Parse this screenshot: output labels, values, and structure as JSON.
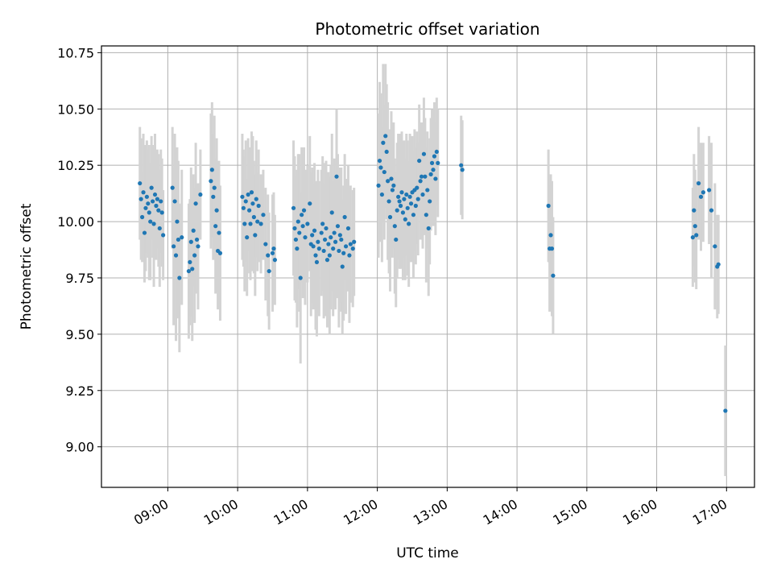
{
  "chart_data": {
    "type": "scatter",
    "title": "Photometric offset variation",
    "xlabel": "UTC time",
    "ylabel": "Photometric offset",
    "x_ticks": [
      "09:00",
      "10:00",
      "11:00",
      "12:00",
      "13:00",
      "14:00",
      "15:00",
      "16:00",
      "17:00"
    ],
    "y_ticks": [
      "9.00",
      "9.25",
      "9.50",
      "9.75",
      "10.00",
      "10.25",
      "10.50",
      "10.75"
    ],
    "xlim": [
      "08:03",
      "17:24"
    ],
    "ylim": [
      8.82,
      10.78
    ],
    "grid": true,
    "colors": {
      "point": "#1f77b4",
      "errorbar": "#d3d3d3",
      "grid": "#b0b0b0"
    },
    "series": [
      {
        "points": [
          {
            "t": "08:36",
            "y": 10.17,
            "err": 0.25
          },
          {
            "t": "08:37",
            "y": 10.1,
            "err": 0.27
          },
          {
            "t": "08:38",
            "y": 10.02,
            "err": 0.2
          },
          {
            "t": "08:39",
            "y": 10.13,
            "err": 0.26
          },
          {
            "t": "08:40",
            "y": 9.95,
            "err": 0.22
          },
          {
            "t": "08:41",
            "y": 10.06,
            "err": 0.28
          },
          {
            "t": "08:42",
            "y": 10.11,
            "err": 0.25
          },
          {
            "t": "08:43",
            "y": 10.08,
            "err": 0.24
          },
          {
            "t": "08:44",
            "y": 10.04,
            "err": 0.3
          },
          {
            "t": "08:45",
            "y": 10.0,
            "err": 0.26
          },
          {
            "t": "08:46",
            "y": 10.15,
            "err": 0.23
          },
          {
            "t": "08:47",
            "y": 10.09,
            "err": 0.25
          },
          {
            "t": "08:48",
            "y": 9.99,
            "err": 0.28
          },
          {
            "t": "08:49",
            "y": 10.12,
            "err": 0.27
          },
          {
            "t": "08:50",
            "y": 10.07,
            "err": 0.24
          },
          {
            "t": "08:51",
            "y": 10.1,
            "err": 0.22
          },
          {
            "t": "08:52",
            "y": 10.05,
            "err": 0.25
          },
          {
            "t": "08:53",
            "y": 9.97,
            "err": 0.26
          },
          {
            "t": "08:54",
            "y": 10.09,
            "err": 0.23
          },
          {
            "t": "08:55",
            "y": 10.04,
            "err": 0.24
          },
          {
            "t": "08:56",
            "y": 9.94,
            "err": 0.2
          },
          {
            "t": "09:04",
            "y": 10.15,
            "err": 0.27
          },
          {
            "t": "09:05",
            "y": 9.89,
            "err": 0.35
          },
          {
            "t": "09:06",
            "y": 10.09,
            "err": 0.3
          },
          {
            "t": "09:07",
            "y": 9.85,
            "err": 0.38
          },
          {
            "t": "09:08",
            "y": 10.0,
            "err": 0.33
          },
          {
            "t": "09:09",
            "y": 9.92,
            "err": 0.35
          },
          {
            "t": "09:10",
            "y": 9.75,
            "err": 0.33
          },
          {
            "t": "09:12",
            "y": 9.93,
            "err": 0.3
          },
          {
            "t": "09:18",
            "y": 9.78,
            "err": 0.3
          },
          {
            "t": "09:19",
            "y": 9.82,
            "err": 0.28
          },
          {
            "t": "09:20",
            "y": 9.91,
            "err": 0.33
          },
          {
            "t": "09:21",
            "y": 9.79,
            "err": 0.32
          },
          {
            "t": "09:22",
            "y": 9.96,
            "err": 0.25
          },
          {
            "t": "09:23",
            "y": 9.85,
            "err": 0.3
          },
          {
            "t": "09:24",
            "y": 10.08,
            "err": 0.27
          },
          {
            "t": "09:25",
            "y": 9.92,
            "err": 0.24
          },
          {
            "t": "09:26",
            "y": 9.89,
            "err": 0.28
          },
          {
            "t": "09:28",
            "y": 10.12,
            "err": 0.2
          },
          {
            "t": "09:37",
            "y": 10.18,
            "err": 0.3
          },
          {
            "t": "09:38",
            "y": 10.23,
            "err": 0.3
          },
          {
            "t": "09:39",
            "y": 10.11,
            "err": 0.28
          },
          {
            "t": "09:40",
            "y": 10.15,
            "err": 0.32
          },
          {
            "t": "09:41",
            "y": 9.98,
            "err": 0.3
          },
          {
            "t": "09:42",
            "y": 10.05,
            "err": 0.32
          },
          {
            "t": "09:43",
            "y": 9.87,
            "err": 0.26
          },
          {
            "t": "09:44",
            "y": 9.95,
            "err": 0.32
          },
          {
            "t": "09:45",
            "y": 9.86,
            "err": 0.3
          },
          {
            "t": "10:04",
            "y": 10.11,
            "err": 0.28
          },
          {
            "t": "10:05",
            "y": 10.06,
            "err": 0.26
          },
          {
            "t": "10:06",
            "y": 9.99,
            "err": 0.3
          },
          {
            "t": "10:07",
            "y": 10.09,
            "err": 0.27
          },
          {
            "t": "10:08",
            "y": 9.93,
            "err": 0.26
          },
          {
            "t": "10:09",
            "y": 10.12,
            "err": 0.25
          },
          {
            "t": "10:10",
            "y": 10.05,
            "err": 0.28
          },
          {
            "t": "10:11",
            "y": 9.99,
            "err": 0.25
          },
          {
            "t": "10:12",
            "y": 10.13,
            "err": 0.27
          },
          {
            "t": "10:13",
            "y": 10.08,
            "err": 0.3
          },
          {
            "t": "10:14",
            "y": 10.02,
            "err": 0.25
          },
          {
            "t": "10:15",
            "y": 9.94,
            "err": 0.27
          },
          {
            "t": "10:16",
            "y": 10.1,
            "err": 0.26
          },
          {
            "t": "10:17",
            "y": 10.0,
            "err": 0.22
          },
          {
            "t": "10:18",
            "y": 10.07,
            "err": 0.25
          },
          {
            "t": "10:20",
            "y": 9.99,
            "err": 0.22
          },
          {
            "t": "10:22",
            "y": 10.03,
            "err": 0.2
          },
          {
            "t": "10:24",
            "y": 9.9,
            "err": 0.25
          },
          {
            "t": "10:26",
            "y": 9.85,
            "err": 0.27
          },
          {
            "t": "10:27",
            "y": 9.78,
            "err": 0.26
          },
          {
            "t": "10:30",
            "y": 9.86,
            "err": 0.26
          },
          {
            "t": "10:31",
            "y": 9.88,
            "err": 0.25
          },
          {
            "t": "10:32",
            "y": 9.83,
            "err": 0.2
          },
          {
            "t": "10:48",
            "y": 10.06,
            "err": 0.3
          },
          {
            "t": "10:49",
            "y": 9.97,
            "err": 0.32
          },
          {
            "t": "10:50",
            "y": 9.92,
            "err": 0.28
          },
          {
            "t": "10:51",
            "y": 9.88,
            "err": 0.35
          },
          {
            "t": "10:52",
            "y": 10.0,
            "err": 0.3
          },
          {
            "t": "10:53",
            "y": 9.95,
            "err": 0.35
          },
          {
            "t": "10:54",
            "y": 9.75,
            "err": 0.38
          },
          {
            "t": "10:55",
            "y": 10.03,
            "err": 0.3
          },
          {
            "t": "10:56",
            "y": 9.98,
            "err": 0.32
          },
          {
            "t": "10:57",
            "y": 10.05,
            "err": 0.28
          },
          {
            "t": "10:58",
            "y": 9.93,
            "err": 0.3
          },
          {
            "t": "11:00",
            "y": 9.99,
            "err": 0.26
          },
          {
            "t": "11:02",
            "y": 10.08,
            "err": 0.3
          },
          {
            "t": "11:03",
            "y": 9.9,
            "err": 0.32
          },
          {
            "t": "11:04",
            "y": 9.94,
            "err": 0.3
          },
          {
            "t": "11:05",
            "y": 9.89,
            "err": 0.28
          },
          {
            "t": "11:06",
            "y": 9.96,
            "err": 0.3
          },
          {
            "t": "11:07",
            "y": 9.85,
            "err": 0.33
          },
          {
            "t": "11:08",
            "y": 9.82,
            "err": 0.33
          },
          {
            "t": "11:09",
            "y": 9.91,
            "err": 0.32
          },
          {
            "t": "11:10",
            "y": 9.88,
            "err": 0.3
          },
          {
            "t": "11:12",
            "y": 9.95,
            "err": 0.28
          },
          {
            "t": "11:13",
            "y": 9.99,
            "err": 0.3
          },
          {
            "t": "11:14",
            "y": 9.87,
            "err": 0.3
          },
          {
            "t": "11:15",
            "y": 9.92,
            "err": 0.34
          },
          {
            "t": "11:16",
            "y": 9.97,
            "err": 0.3
          },
          {
            "t": "11:17",
            "y": 9.83,
            "err": 0.3
          },
          {
            "t": "11:18",
            "y": 9.9,
            "err": 0.32
          },
          {
            "t": "11:19",
            "y": 9.85,
            "err": 0.35
          },
          {
            "t": "11:20",
            "y": 9.93,
            "err": 0.32
          },
          {
            "t": "11:21",
            "y": 10.04,
            "err": 0.35
          },
          {
            "t": "11:22",
            "y": 9.88,
            "err": 0.3
          },
          {
            "t": "11:23",
            "y": 9.95,
            "err": 0.33
          },
          {
            "t": "11:24",
            "y": 9.91,
            "err": 0.3
          },
          {
            "t": "11:25",
            "y": 10.2,
            "err": 0.3
          },
          {
            "t": "11:26",
            "y": 9.98,
            "err": 0.32
          },
          {
            "t": "11:27",
            "y": 9.87,
            "err": 0.34
          },
          {
            "t": "11:28",
            "y": 9.94,
            "err": 0.3
          },
          {
            "t": "11:29",
            "y": 9.92,
            "err": 0.32
          },
          {
            "t": "11:30",
            "y": 9.8,
            "err": 0.3
          },
          {
            "t": "11:31",
            "y": 9.86,
            "err": 0.3
          },
          {
            "t": "11:32",
            "y": 10.02,
            "err": 0.28
          },
          {
            "t": "11:33",
            "y": 9.89,
            "err": 0.3
          },
          {
            "t": "11:35",
            "y": 9.97,
            "err": 0.28
          },
          {
            "t": "11:36",
            "y": 9.85,
            "err": 0.3
          },
          {
            "t": "11:37",
            "y": 9.9,
            "err": 0.26
          },
          {
            "t": "11:39",
            "y": 9.88,
            "err": 0.26
          },
          {
            "t": "11:40",
            "y": 9.91,
            "err": 0.24
          },
          {
            "t": "12:01",
            "y": 10.16,
            "err": 0.32
          },
          {
            "t": "12:02",
            "y": 10.27,
            "err": 0.35
          },
          {
            "t": "12:03",
            "y": 10.24,
            "err": 0.33
          },
          {
            "t": "12:04",
            "y": 10.12,
            "err": 0.3
          },
          {
            "t": "12:05",
            "y": 10.35,
            "err": 0.35
          },
          {
            "t": "12:06",
            "y": 10.22,
            "err": 0.3
          },
          {
            "t": "12:07",
            "y": 10.38,
            "err": 0.32
          },
          {
            "t": "12:08",
            "y": 10.31,
            "err": 0.3
          },
          {
            "t": "12:09",
            "y": 10.18,
            "err": 0.35
          },
          {
            "t": "12:10",
            "y": 10.09,
            "err": 0.32
          },
          {
            "t": "12:11",
            "y": 10.02,
            "err": 0.33
          },
          {
            "t": "12:12",
            "y": 10.19,
            "err": 0.3
          },
          {
            "t": "12:13",
            "y": 10.14,
            "err": 0.3
          },
          {
            "t": "12:14",
            "y": 10.16,
            "err": 0.28
          },
          {
            "t": "12:15",
            "y": 9.98,
            "err": 0.3
          },
          {
            "t": "12:16",
            "y": 9.92,
            "err": 0.3
          },
          {
            "t": "12:17",
            "y": 10.05,
            "err": 0.3
          },
          {
            "t": "12:18",
            "y": 10.11,
            "err": 0.28
          },
          {
            "t": "12:19",
            "y": 10.09,
            "err": 0.3
          },
          {
            "t": "12:20",
            "y": 10.07,
            "err": 0.28
          },
          {
            "t": "12:21",
            "y": 10.13,
            "err": 0.27
          },
          {
            "t": "12:22",
            "y": 10.04,
            "err": 0.3
          },
          {
            "t": "12:23",
            "y": 10.1,
            "err": 0.26
          },
          {
            "t": "12:24",
            "y": 10.01,
            "err": 0.27
          },
          {
            "t": "12:25",
            "y": 10.12,
            "err": 0.27
          },
          {
            "t": "12:26",
            "y": 10.06,
            "err": 0.3
          },
          {
            "t": "12:27",
            "y": 9.99,
            "err": 0.28
          },
          {
            "t": "12:28",
            "y": 10.11,
            "err": 0.28
          },
          {
            "t": "12:29",
            "y": 10.08,
            "err": 0.26
          },
          {
            "t": "12:30",
            "y": 10.13,
            "err": 0.25
          },
          {
            "t": "12:31",
            "y": 10.03,
            "err": 0.28
          },
          {
            "t": "12:32",
            "y": 10.14,
            "err": 0.27
          },
          {
            "t": "12:33",
            "y": 10.07,
            "err": 0.26
          },
          {
            "t": "12:34",
            "y": 10.15,
            "err": 0.25
          },
          {
            "t": "12:35",
            "y": 10.1,
            "err": 0.25
          },
          {
            "t": "12:36",
            "y": 10.27,
            "err": 0.25
          },
          {
            "t": "12:37",
            "y": 10.18,
            "err": 0.26
          },
          {
            "t": "12:38",
            "y": 10.2,
            "err": 0.24
          },
          {
            "t": "12:39",
            "y": 10.12,
            "err": 0.24
          },
          {
            "t": "12:40",
            "y": 10.3,
            "err": 0.25
          },
          {
            "t": "12:41",
            "y": 10.2,
            "err": 0.26
          },
          {
            "t": "12:42",
            "y": 10.03,
            "err": 0.3
          },
          {
            "t": "12:43",
            "y": 10.14,
            "err": 0.26
          },
          {
            "t": "12:44",
            "y": 9.97,
            "err": 0.3
          },
          {
            "t": "12:45",
            "y": 10.09,
            "err": 0.28
          },
          {
            "t": "12:46",
            "y": 10.21,
            "err": 0.25
          },
          {
            "t": "12:47",
            "y": 10.26,
            "err": 0.24
          },
          {
            "t": "12:48",
            "y": 10.23,
            "err": 0.25
          },
          {
            "t": "12:49",
            "y": 10.29,
            "err": 0.24
          },
          {
            "t": "12:50",
            "y": 10.19,
            "err": 0.25
          },
          {
            "t": "12:51",
            "y": 10.31,
            "err": 0.24
          },
          {
            "t": "12:52",
            "y": 10.26,
            "err": 0.24
          },
          {
            "t": "13:12",
            "y": 10.25,
            "err": 0.22
          },
          {
            "t": "13:13",
            "y": 10.23,
            "err": 0.22
          },
          {
            "t": "14:27",
            "y": 10.07,
            "err": 0.25
          },
          {
            "t": "14:28",
            "y": 9.88,
            "err": 0.28
          },
          {
            "t": "14:29",
            "y": 9.94,
            "err": 0.27
          },
          {
            "t": "14:30",
            "y": 9.88,
            "err": 0.3
          },
          {
            "t": "14:31",
            "y": 9.76,
            "err": 0.26
          },
          {
            "t": "16:31",
            "y": 9.93,
            "err": 0.22
          },
          {
            "t": "16:32",
            "y": 10.05,
            "err": 0.25
          },
          {
            "t": "16:33",
            "y": 9.98,
            "err": 0.25
          },
          {
            "t": "16:34",
            "y": 9.94,
            "err": 0.24
          },
          {
            "t": "16:36",
            "y": 10.17,
            "err": 0.25
          },
          {
            "t": "16:38",
            "y": 10.11,
            "err": 0.24
          },
          {
            "t": "16:40",
            "y": 10.13,
            "err": 0.22
          },
          {
            "t": "16:45",
            "y": 10.14,
            "err": 0.24
          },
          {
            "t": "16:47",
            "y": 10.05,
            "err": 0.3
          },
          {
            "t": "16:50",
            "y": 9.89,
            "err": 0.28
          },
          {
            "t": "16:52",
            "y": 9.8,
            "err": 0.23
          },
          {
            "t": "16:53",
            "y": 9.81,
            "err": 0.22
          },
          {
            "t": "16:59",
            "y": 9.16,
            "err": 0.29
          }
        ]
      }
    ]
  }
}
